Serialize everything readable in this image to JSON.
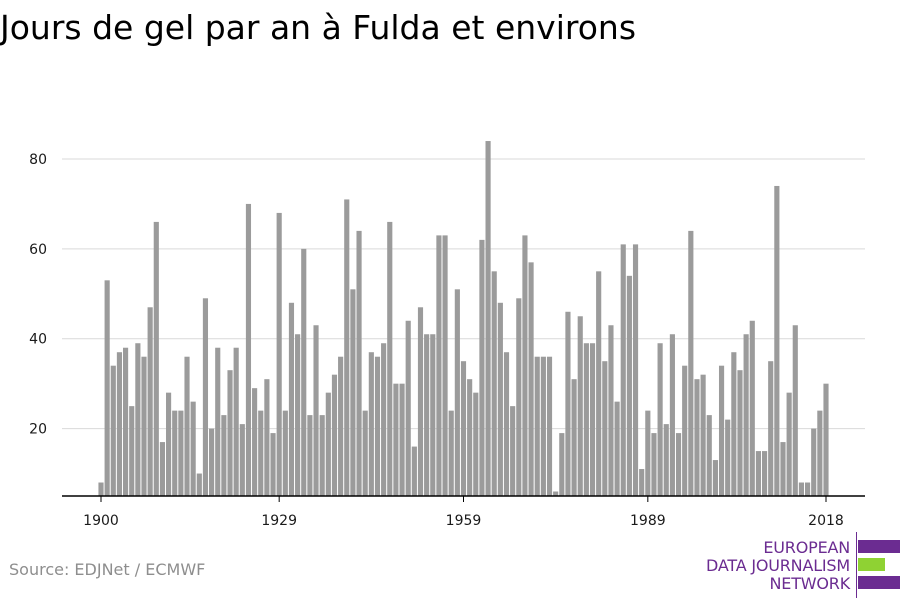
{
  "title": "Jours de gel par an à Fulda et environs",
  "source": "Source: EDJNet / ECMWF",
  "logo": {
    "lines": [
      "EUROPEAN",
      "DATA JOURNALISM",
      "NETWORK"
    ],
    "colors": {
      "purple": "#6b2c91",
      "green": "#8fd233"
    }
  },
  "colors": {
    "bar": "#9b9b9b",
    "grid": "#d9d9d9",
    "axis": "#000000",
    "tick_text": "#1a1a1a"
  },
  "chart_data": {
    "type": "bar",
    "title": "Jours de gel par an à Fulda et environs",
    "xlabel": "",
    "ylabel": "",
    "x_ticks": [
      1900,
      1929,
      1959,
      1989,
      2018
    ],
    "y_ticks": [
      20,
      40,
      60,
      80
    ],
    "xlim": [
      1899,
      2019
    ],
    "ylim": [
      5,
      85
    ],
    "grid": true,
    "x": [
      1900,
      1901,
      1902,
      1903,
      1904,
      1905,
      1906,
      1907,
      1908,
      1909,
      1910,
      1911,
      1912,
      1913,
      1914,
      1915,
      1916,
      1917,
      1918,
      1919,
      1920,
      1921,
      1922,
      1923,
      1924,
      1925,
      1926,
      1927,
      1928,
      1929,
      1930,
      1931,
      1932,
      1933,
      1934,
      1935,
      1936,
      1937,
      1938,
      1939,
      1940,
      1941,
      1942,
      1943,
      1944,
      1945,
      1946,
      1947,
      1948,
      1949,
      1950,
      1951,
      1952,
      1953,
      1954,
      1955,
      1956,
      1957,
      1958,
      1959,
      1960,
      1961,
      1962,
      1963,
      1964,
      1965,
      1966,
      1967,
      1968,
      1969,
      1970,
      1971,
      1972,
      1973,
      1974,
      1975,
      1976,
      1977,
      1978,
      1979,
      1980,
      1981,
      1982,
      1983,
      1984,
      1985,
      1986,
      1987,
      1988,
      1989,
      1990,
      1991,
      1992,
      1993,
      1994,
      1995,
      1996,
      1997,
      1998,
      1999,
      2000,
      2001,
      2002,
      2003,
      2004,
      2005,
      2006,
      2007,
      2008,
      2009,
      2010,
      2011,
      2012,
      2013,
      2014,
      2015,
      2016,
      2017,
      2018
    ],
    "values": [
      8,
      53,
      34,
      37,
      38,
      25,
      39,
      36,
      47,
      66,
      17,
      28,
      24,
      24,
      36,
      26,
      10,
      49,
      20,
      38,
      23,
      33,
      38,
      21,
      70,
      29,
      24,
      31,
      19,
      68,
      24,
      48,
      41,
      60,
      23,
      43,
      23,
      28,
      32,
      36,
      71,
      51,
      64,
      24,
      37,
      36,
      39,
      66,
      30,
      30,
      44,
      16,
      47,
      41,
      41,
      63,
      63,
      24,
      51,
      35,
      31,
      28,
      62,
      84,
      55,
      48,
      37,
      25,
      49,
      63,
      57,
      36,
      36,
      36,
      6,
      19,
      46,
      31,
      45,
      39,
      39,
      55,
      35,
      43,
      26,
      61,
      54,
      61,
      11,
      24,
      19,
      39,
      21,
      41,
      19,
      34,
      64,
      31,
      32,
      23,
      13,
      34,
      22,
      37,
      33,
      41,
      44,
      15,
      15,
      35,
      74,
      17,
      28,
      43,
      8,
      8,
      20,
      24,
      30
    ]
  }
}
